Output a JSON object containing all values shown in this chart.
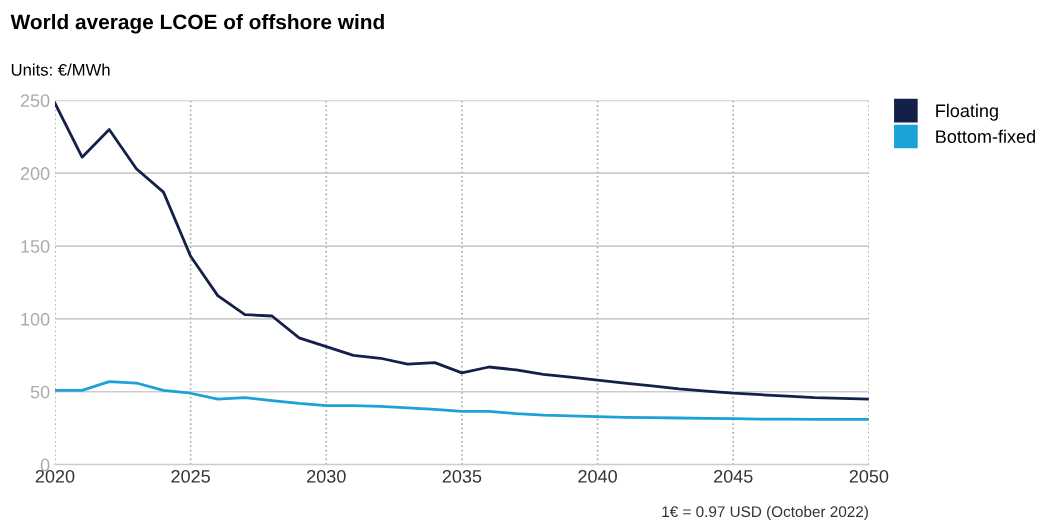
{
  "chart_data": {
    "type": "line",
    "title": "World average LCOE of offshore wind",
    "subtitle": "Units: €/MWh",
    "x": [
      2020,
      2021,
      2022,
      2023,
      2024,
      2025,
      2026,
      2027,
      2028,
      2029,
      2030,
      2031,
      2032,
      2033,
      2034,
      2035,
      2036,
      2037,
      2038,
      2039,
      2040,
      2041,
      2042,
      2043,
      2044,
      2045,
      2046,
      2047,
      2048,
      2049,
      2050
    ],
    "series": [
      {
        "name": "Floating",
        "color": "#14204a",
        "values": [
          248,
          211,
          230,
          203,
          187,
          143,
          116,
          103,
          102,
          87,
          81,
          75,
          73,
          69,
          70,
          63,
          67,
          65,
          62,
          60,
          58,
          56,
          54,
          52,
          50.5,
          49,
          48,
          47,
          46,
          45.5,
          45
        ]
      },
      {
        "name": "Bottom-fixed",
        "color": "#1ba2d6",
        "values": [
          51,
          51,
          57,
          56,
          51,
          49,
          45,
          46,
          44,
          42,
          40.5,
          40.5,
          40,
          39,
          38,
          36.5,
          36.5,
          35,
          34,
          33.5,
          33,
          32.5,
          32.2,
          32,
          31.7,
          31.5,
          31.3,
          31.2,
          31,
          31,
          31
        ]
      }
    ],
    "xlim": [
      2020,
      2050
    ],
    "xticks": [
      2020,
      2025,
      2030,
      2035,
      2040,
      2045,
      2050
    ],
    "ylim": [
      0,
      250
    ],
    "yticks": [
      0,
      50,
      100,
      150,
      200,
      250
    ],
    "grid": true,
    "legend": "top right",
    "marker": "none",
    "line_style": "solid",
    "annotations": [
      "1€ = 0.97 USD (October 2022)"
    ]
  }
}
